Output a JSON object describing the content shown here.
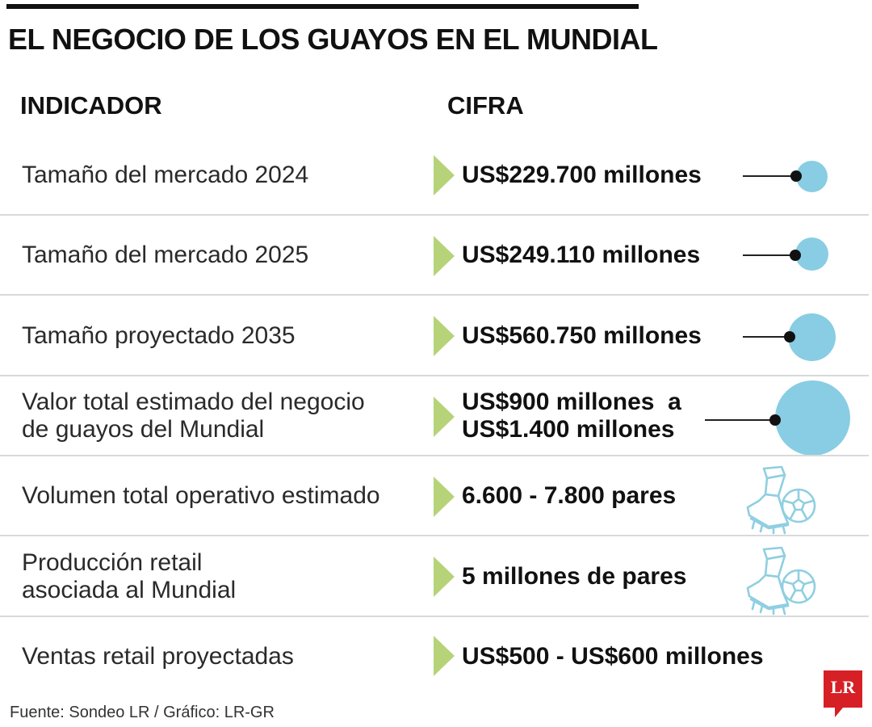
{
  "title": "EL NEGOCIO DE LOS GUAYOS EN EL MUNDIAL",
  "headers": {
    "indicator": "INDICADOR",
    "figure": "CIFRA"
  },
  "rows": [
    {
      "indicator_lines": [
        "Tamaño del mercado 2024"
      ],
      "value_lines": [
        "US$229.700 millones"
      ],
      "marker": "bubble"
    },
    {
      "indicator_lines": [
        "Tamaño del mercado 2025"
      ],
      "value_lines": [
        "US$249.110 millones"
      ],
      "marker": "bubble"
    },
    {
      "indicator_lines": [
        "Tamaño proyectado 2035"
      ],
      "value_lines": [
        "US$560.750 millones"
      ],
      "marker": "bubble"
    },
    {
      "indicator_lines": [
        "Valor total estimado del negocio",
        "de guayos del Mundial"
      ],
      "value_lines": [
        "US$900 millones  a",
        "US$1.400 millones"
      ],
      "marker": "bubble"
    },
    {
      "indicator_lines": [
        "Volumen total operativo estimado"
      ],
      "value_lines": [
        "6.600 - 7.800 pares"
      ],
      "marker": "cleat-ball-icon"
    },
    {
      "indicator_lines": [
        "Producción retail",
        "asociada al Mundial"
      ],
      "value_lines": [
        "5 millones de pares"
      ],
      "marker": "cleat-ball-icon"
    },
    {
      "indicator_lines": [
        "Ventas retail proyectadas"
      ],
      "value_lines": [
        "US$500 - US$600 millones"
      ],
      "marker": "none"
    }
  ],
  "chart_data": {
    "type": "table",
    "title": "EL NEGOCIO DE LOS GUAYOS EN EL MUNDIAL",
    "columns": [
      "INDICADOR",
      "CIFRA"
    ],
    "rows": [
      [
        "Tamaño del mercado 2024",
        "US$229.700 millones"
      ],
      [
        "Tamaño del mercado 2025",
        "US$249.110 millones"
      ],
      [
        "Tamaño proyectado 2035",
        "US$560.750 millones"
      ],
      [
        "Valor total estimado del negocio de guayos del Mundial",
        "US$900 millones  a US$1.400 millones"
      ],
      [
        "Volumen total operativo estimado",
        "6.600 - 7.800 pares"
      ],
      [
        "Producción retail asociada al Mundial",
        "5 millones de pares"
      ],
      [
        "Ventas retail proyectadas",
        "US$500 - US$600 millones"
      ]
    ]
  },
  "source": "Fuente: Sondeo LR / Gráfico: LR-GR",
  "logo": {
    "text": "LR",
    "color": "#d71f26"
  },
  "colors": {
    "accent_arrow": "#b7d379",
    "bubble": "#88cde3",
    "divider": "#d9d9d9",
    "icon_stroke": "#8fcfe1"
  }
}
